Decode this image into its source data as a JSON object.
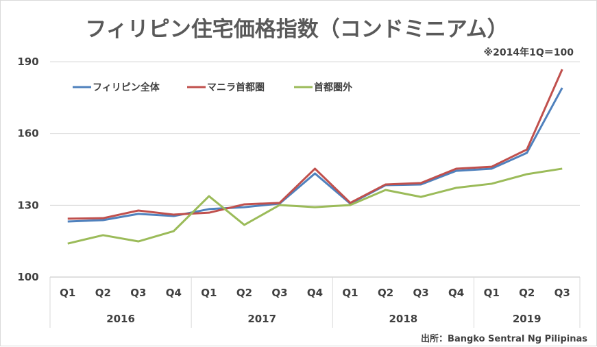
{
  "chart_data": {
    "type": "line",
    "title": "フィリピン住宅価格指数（コンドミニアム）",
    "note": "※2014年1Q＝100",
    "source": "出所：Bangko Sentral Ng Pilipinas",
    "xlabel": "",
    "ylabel": "",
    "ylim": [
      100,
      190
    ],
    "yticks": [
      100,
      130,
      160,
      190
    ],
    "grid": true,
    "legend_position": "top-left",
    "years": [
      "2016",
      "2017",
      "2018",
      "2019"
    ],
    "quarters_per_year": [
      4,
      4,
      4,
      3
    ],
    "categories": [
      "Q1",
      "Q2",
      "Q3",
      "Q4",
      "Q1",
      "Q2",
      "Q3",
      "Q4",
      "Q1",
      "Q2",
      "Q3",
      "Q4",
      "Q1",
      "Q2",
      "Q3"
    ],
    "series": [
      {
        "name": "フィリピン全体",
        "color": "#4f81bd",
        "values": [
          123.2,
          123.8,
          126.4,
          125.5,
          128.4,
          129.2,
          130.7,
          143.3,
          130.7,
          138.4,
          138.7,
          144.4,
          145.3,
          151.9,
          179.1
        ]
      },
      {
        "name": "マニラ首都圏",
        "color": "#c0504d",
        "values": [
          124.4,
          124.6,
          127.8,
          126.1,
          126.9,
          130.4,
          131.0,
          145.3,
          131.0,
          138.7,
          139.3,
          145.3,
          146.1,
          153.3,
          186.8
        ]
      },
      {
        "name": "首都圏外",
        "color": "#9bbb59",
        "values": [
          114.0,
          117.5,
          114.9,
          119.2,
          133.8,
          121.8,
          130.1,
          129.2,
          130.1,
          136.4,
          133.5,
          137.3,
          139.0,
          143.0,
          145.3
        ]
      }
    ]
  }
}
